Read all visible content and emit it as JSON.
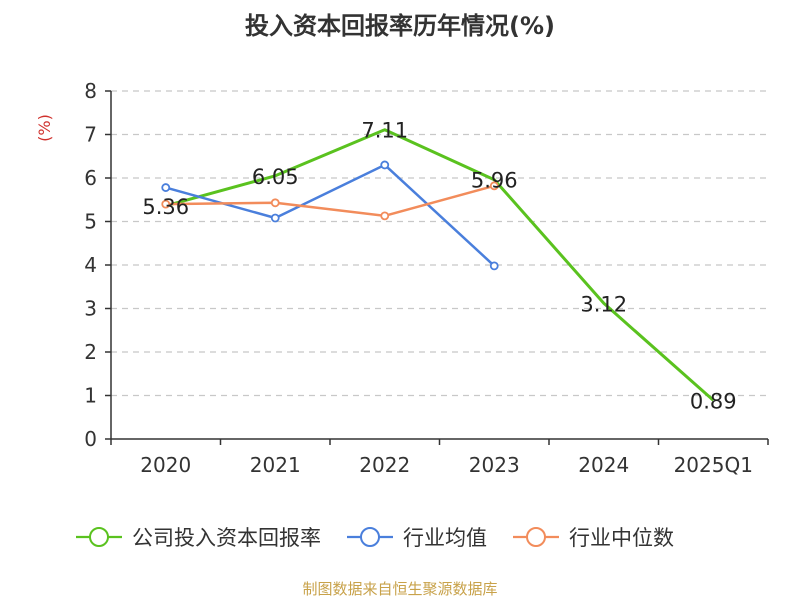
{
  "chart_data": {
    "type": "line",
    "title": "投入资本回报率历年情况(%)",
    "ylabel": "(%)",
    "xlabel": "",
    "categories": [
      "2020",
      "2021",
      "2022",
      "2023",
      "2024",
      "2025Q1"
    ],
    "ylim": [
      0,
      8
    ],
    "yticks": [
      0,
      1,
      2,
      3,
      4,
      5,
      6,
      7,
      8
    ],
    "grid": true,
    "legend_position": "bottom",
    "series": [
      {
        "name": "公司投入资本回报率",
        "color": "#5ac21f",
        "values": [
          5.36,
          6.05,
          7.11,
          5.96,
          3.12,
          0.89
        ],
        "labels": [
          "5.36",
          "6.05",
          "7.11",
          "5.96",
          "3.12",
          "0.89"
        ],
        "show_markers": false
      },
      {
        "name": "行业均值",
        "color": "#4a7fdc",
        "values": [
          5.78,
          5.08,
          6.3,
          3.98,
          null,
          null
        ],
        "show_markers": true
      },
      {
        "name": "行业中位数",
        "color": "#f28c5b",
        "values": [
          5.4,
          5.43,
          5.13,
          5.82,
          null,
          null
        ],
        "show_markers": true
      }
    ]
  },
  "source": "制图数据来自恒生聚源数据库",
  "colors": {
    "ylabel": "#d0312d",
    "axis": "#333333",
    "grid": "#c8c8c8"
  }
}
